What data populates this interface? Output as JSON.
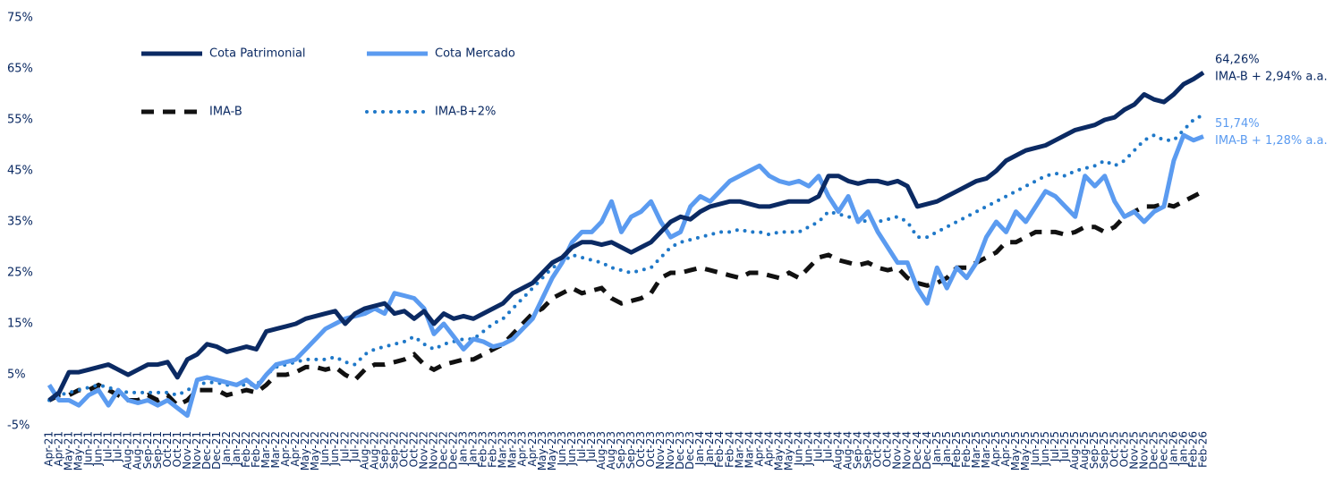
{
  "chart_data": {
    "type": "line",
    "categories": [
      "Apr-21",
      "Apr-21",
      "May-21",
      "May-21",
      "Jun-21",
      "Jun-21",
      "Jul-21",
      "Jul-21",
      "Aug-21",
      "Aug-21",
      "Sep-21",
      "Sep-21",
      "Oct-21",
      "Oct-21",
      "Nov-21",
      "Nov-21",
      "Dec-21",
      "Dec-21",
      "Jan-22",
      "Jan-22",
      "Feb-22",
      "Feb-22",
      "Mar-22",
      "Mar-22",
      "Apr-22",
      "Apr-22",
      "May-22",
      "May-22",
      "Jun-22",
      "Jun-22",
      "Jul-22",
      "Jul-22",
      "Aug-22",
      "Aug-22",
      "Sep-22",
      "Sep-22",
      "Oct-22",
      "Oct-22",
      "Nov-22",
      "Nov-22",
      "Dec-22",
      "Dec-22",
      "Jan-23",
      "Jan-23",
      "Feb-23",
      "Feb-23",
      "Mar-23",
      "Mar-23",
      "Apr-23",
      "Apr-23",
      "May-23",
      "May-23",
      "Jun-23",
      "Jun-23",
      "Jul-23",
      "Jul-23",
      "Aug-23",
      "Aug-23",
      "Sep-23",
      "Sep-23",
      "Oct-23",
      "Oct-23",
      "Nov-23",
      "Nov-23",
      "Dec-23",
      "Dec-23",
      "Jan-24",
      "Jan-24",
      "Feb-24",
      "Feb-24",
      "Mar-24",
      "Mar-24",
      "Apr-24",
      "Apr-24",
      "May-24",
      "May-24",
      "Jun-24",
      "Jun-24",
      "Jul-24",
      "Jul-24",
      "Aug-24",
      "Aug-24",
      "Sep-24",
      "Sep-24",
      "Oct-24",
      "Oct-24",
      "Nov-24",
      "Nov-24",
      "Dec-24",
      "Dec-24",
      "Jan-25",
      "Jan-25",
      "Feb-25",
      "Feb-25",
      "Mar-25",
      "Mar-25",
      "Apr-25",
      "Apr-25",
      "May-25",
      "May-25",
      "Jun-25",
      "Jun-25",
      "Jul-25",
      "Jul-25",
      "Aug-25",
      "Aug-25",
      "Sep-25",
      "Sep-25",
      "Oct-25",
      "Oct-25",
      "Nov-25",
      "Nov-25",
      "Dec-25",
      "Dec-25",
      "Jan-26",
      "Jan-26",
      "Feb-26",
      "Feb-26"
    ],
    "series": [
      {
        "name": "Cota Patrimonial",
        "color": "#0b2a63",
        "style": "solid",
        "end_label": "64,26%",
        "end_note": "IMA-B + 2,94% a.a.",
        "values": [
          0,
          1.5,
          5.5,
          5.5,
          6,
          6.5,
          7,
          6,
          5,
          6,
          7,
          7,
          7.5,
          4.5,
          8,
          9,
          11,
          10.5,
          9.5,
          10,
          10.5,
          10,
          13.5,
          14,
          14.5,
          15,
          16,
          16.5,
          17,
          17.5,
          15,
          17,
          18,
          18.5,
          19,
          17,
          17.5,
          16,
          17.5,
          15,
          17,
          16,
          16.5,
          16,
          17,
          18,
          19,
          21,
          22,
          23,
          25,
          27,
          28,
          30,
          31,
          31,
          30.5,
          31,
          30,
          29,
          30,
          31,
          33,
          35,
          36,
          35.5,
          37,
          38,
          38.5,
          39,
          39,
          38.5,
          38,
          38,
          38.5,
          39,
          39,
          39,
          40,
          44,
          44,
          43,
          42.5,
          43,
          43,
          42.5,
          43,
          42,
          38,
          38.5,
          39,
          40,
          41,
          42,
          43,
          43.5,
          45,
          47,
          48,
          49,
          49.5,
          50,
          51,
          52,
          53,
          53.5,
          54,
          55,
          55.5,
          57,
          58,
          60,
          59,
          58.5,
          60,
          62,
          63,
          64.26
        ]
      },
      {
        "name": "Cota Mercado",
        "color": "#5b9bf0",
        "style": "solid",
        "end_label": "51,74%",
        "end_note": "IMA-B + 1,28% a.a.",
        "values": [
          3,
          0,
          0,
          -1,
          1,
          2,
          -1,
          2,
          0,
          -0.5,
          0,
          -1,
          0,
          -1.5,
          -3,
          4,
          4.5,
          4,
          3.5,
          3,
          4,
          2.5,
          5,
          7,
          7.5,
          8,
          10,
          12,
          14,
          15,
          16,
          16.5,
          17,
          18,
          17,
          21,
          20.5,
          20,
          18,
          13,
          15,
          12.5,
          10,
          12,
          11.5,
          10.5,
          11,
          12,
          14,
          16,
          20,
          24,
          27,
          31,
          33,
          33,
          35,
          39,
          33,
          36,
          37,
          39,
          35,
          32,
          33,
          38,
          40,
          39,
          41,
          43,
          44,
          45,
          46,
          44,
          43,
          42.5,
          43,
          42,
          44,
          40,
          37,
          40,
          35,
          37,
          33,
          30,
          27,
          27,
          22,
          19,
          26,
          22,
          26,
          24,
          27,
          32,
          35,
          33,
          37,
          35,
          38,
          41,
          40,
          38,
          36,
          44,
          42,
          44,
          39,
          36,
          37,
          35,
          37,
          38,
          47,
          52,
          51,
          51.74
        ]
      },
      {
        "name": "IMA-B",
        "color": "#111111",
        "style": "dashed",
        "values": [
          0,
          1,
          1,
          2,
          2,
          3,
          2,
          1,
          0,
          0,
          1,
          0,
          1,
          -1,
          0,
          2,
          2,
          2,
          1,
          1.5,
          2,
          1.5,
          3,
          5,
          5,
          5.5,
          6.5,
          6.5,
          6,
          6.5,
          5,
          4,
          6,
          7,
          7,
          7.5,
          8,
          9,
          7,
          6,
          7,
          7.5,
          8,
          8,
          9,
          10,
          11,
          13,
          15,
          17,
          18,
          20,
          21,
          22,
          21,
          21.5,
          22,
          20,
          19,
          19.5,
          20,
          21,
          24,
          25,
          25,
          25.5,
          26,
          25.5,
          25,
          24.5,
          24,
          25,
          25,
          24.5,
          24,
          25,
          24,
          26,
          28,
          28.5,
          27.5,
          27,
          26.5,
          27,
          26,
          25.5,
          26,
          24,
          23,
          22.5,
          23,
          24,
          26,
          26,
          27,
          28,
          29,
          31,
          31,
          32,
          33,
          33,
          33,
          32.5,
          33,
          34,
          34,
          33,
          34,
          36,
          37,
          38,
          38,
          38.5,
          38,
          39,
          40,
          41
        ]
      },
      {
        "name": "IMA-B+2%",
        "color": "#1f78c8",
        "style": "dotted",
        "values": [
          0,
          1,
          1.5,
          2,
          2.5,
          3,
          2.5,
          2,
          1.5,
          1.5,
          1.5,
          1.5,
          1.5,
          1,
          2,
          3,
          3.5,
          3.5,
          3,
          3,
          3,
          3,
          5,
          6.5,
          7,
          7.5,
          8,
          8,
          8,
          8.5,
          7.5,
          7,
          9,
          10,
          10.5,
          11,
          11.5,
          12.5,
          11,
          10,
          11,
          11.5,
          12,
          12,
          13.5,
          15,
          16,
          18,
          20,
          22,
          24,
          26,
          27,
          28.5,
          28,
          27.5,
          27,
          26,
          25.5,
          25,
          25.5,
          26,
          28,
          30,
          31,
          31.5,
          32,
          32.5,
          33,
          33,
          33.5,
          33,
          33,
          32.5,
          33,
          33,
          33,
          34,
          35,
          37,
          36.5,
          36,
          35.5,
          35,
          35,
          35.5,
          36,
          35,
          32,
          32,
          33,
          34,
          35,
          36,
          37,
          38,
          39,
          40,
          41,
          42,
          43,
          44,
          44.5,
          44,
          45,
          45.5,
          46,
          47,
          46,
          47,
          49,
          51,
          52,
          51,
          51,
          53,
          55,
          56
        ]
      }
    ],
    "ylim": [
      -5,
      75
    ],
    "yticks": [
      {
        "value": -5,
        "label": "-5%"
      },
      {
        "value": 5,
        "label": "5%"
      },
      {
        "value": 15,
        "label": "15%"
      },
      {
        "value": 25,
        "label": "25%"
      },
      {
        "value": 35,
        "label": "35%"
      },
      {
        "value": 45,
        "label": "45%"
      },
      {
        "value": 55,
        "label": "55%"
      },
      {
        "value": 65,
        "label": "65%"
      },
      {
        "value": 75,
        "label": "75%"
      }
    ],
    "grid": false,
    "legend": "top-left"
  }
}
